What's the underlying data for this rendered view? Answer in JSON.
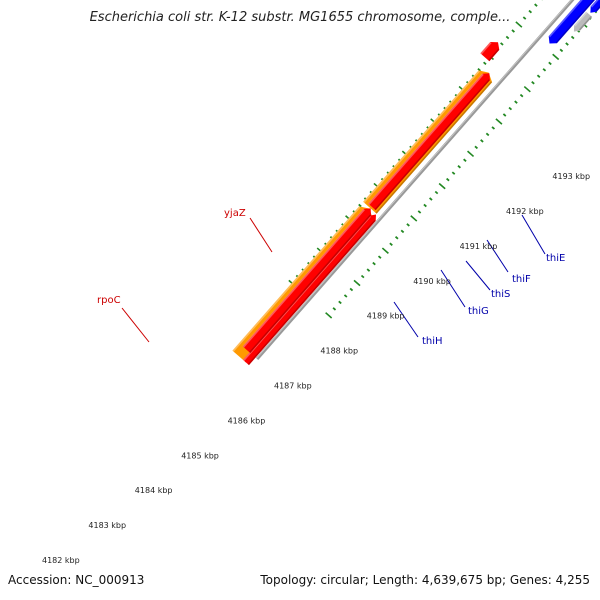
{
  "title": "Escherichia coli str. K-12 substr. MG1655 chromosome, comple...",
  "footer": {
    "accession": "Accession: NC_000913",
    "summary": "Topology: circular; Length: 4,639,675 bp; Genes: 4,255"
  },
  "colors": {
    "forward_strand": "#ff0000",
    "reverse_strand": "#0000ff",
    "rpoC_gene": "#ff9900",
    "pseudo_gene": "#bbbbbb",
    "backbone": "#888888",
    "ticks": "#228822",
    "forward_label": "#cc0000",
    "reverse_label": "#0000aa"
  },
  "kbp_labels": [
    {
      "kbp": 4182,
      "text": "4182 kbp"
    },
    {
      "kbp": 4183,
      "text": "4183 kbp"
    },
    {
      "kbp": 4184,
      "text": "4184 kbp"
    },
    {
      "kbp": 4185,
      "text": "4185 kbp"
    },
    {
      "kbp": 4186,
      "text": "4186 kbp"
    },
    {
      "kbp": 4187,
      "text": "4187 kbp"
    },
    {
      "kbp": 4188,
      "text": "4188 kbp"
    },
    {
      "kbp": 4189,
      "text": "4189 kbp"
    },
    {
      "kbp": 4190,
      "text": "4190 kbp"
    },
    {
      "kbp": 4191,
      "text": "4191 kbp"
    },
    {
      "kbp": 4192,
      "text": "4192 kbp"
    },
    {
      "kbp": 4193,
      "text": "4193 kbp"
    }
  ],
  "gene_labels": [
    {
      "name": "rpoC",
      "strand": "forward"
    },
    {
      "name": "yjaZ",
      "strand": "forward"
    },
    {
      "name": "thiH",
      "strand": "reverse"
    },
    {
      "name": "thiG",
      "strand": "reverse"
    },
    {
      "name": "thiS",
      "strand": "reverse"
    },
    {
      "name": "thiF",
      "strand": "reverse"
    },
    {
      "name": "thiE",
      "strand": "reverse"
    }
  ]
}
